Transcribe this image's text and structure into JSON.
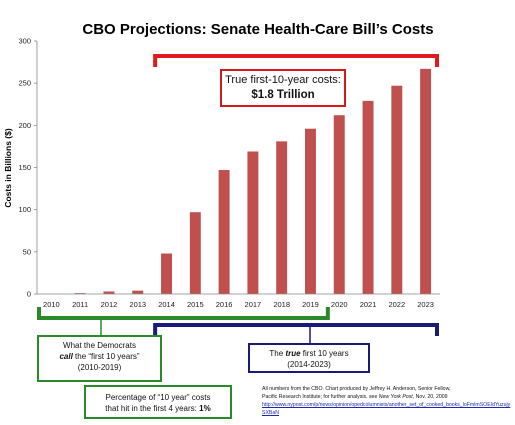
{
  "chart_data": {
    "type": "bar",
    "title": "CBO Projections: Senate Health-Care Bill’s Costs",
    "xlabel": "",
    "ylabel": "Costs in Billions ($)",
    "ylim": [
      0,
      300
    ],
    "yticks": [
      0,
      50,
      100,
      150,
      200,
      250,
      300
    ],
    "categories": [
      "2010",
      "2011",
      "2012",
      "2013",
      "2014",
      "2015",
      "2016",
      "2017",
      "2018",
      "2019",
      "2020",
      "2021",
      "2022",
      "2023"
    ],
    "values": [
      0,
      1,
      3,
      4,
      48,
      97,
      147,
      169,
      181,
      196,
      212,
      229,
      247,
      267
    ],
    "bar_color": "#c0504d",
    "grid": false
  },
  "callout": {
    "line1": "True first-10-year costs:",
    "line2": "$1.8 Trillion",
    "border_color": "#d11a1a"
  },
  "democrats_box": {
    "line1": "What the Democrats",
    "call_word": "call",
    "line2_rest": " the “first 10 years”",
    "line3": "(2010-2019)",
    "border_color": "#2a8a2a"
  },
  "percentage_box": {
    "line1": "Percentage of “10 year” costs",
    "line2_text": "that hit in the first 4 years: ",
    "line2_value": "1%"
  },
  "true_box": {
    "prefix": "The ",
    "true_word": "true",
    "rest": " first 10 years",
    "line2": "(2014-2023)",
    "border_color": "#1a1a7a"
  },
  "source": {
    "line1": "All numbers from the CBO.  Chart produced by Jeffrey H. Anderson, Senior Fellow,",
    "line2": "Pacific Research Institute; for further analysis, see ",
    "publication": "New York Post",
    "line2_end": ", Nov. 20, 2009",
    "url": "http://www.nypost.com/p/news/opinion/opedcolumnists/another_set_of_cooked_books_loFmlmSOEIdYuzujySXBaN"
  }
}
